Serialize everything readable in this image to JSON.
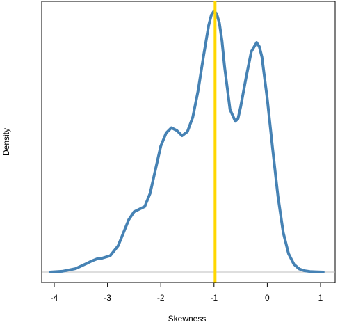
{
  "chart_data": {
    "type": "line",
    "title": "",
    "xlabel": "Skewness",
    "ylabel": "Density",
    "xlim": [
      -4.2,
      1.25
    ],
    "ylim": [
      0,
      1.0
    ],
    "x_ticks": [
      -4,
      -3,
      -2,
      -1,
      0,
      1
    ],
    "x_tick_labels": [
      "-4",
      "-3",
      "-2",
      "-1",
      "0",
      "1"
    ],
    "y_ticks_shown": false,
    "baseline": 0,
    "vline_x": -0.98,
    "series": [
      {
        "x": [
          -4.08,
          -3.85,
          -3.6,
          -3.4,
          -3.3,
          -3.2,
          -3.1,
          -2.95,
          -2.8,
          -2.7,
          -2.6,
          -2.5,
          -2.4,
          -2.3,
          -2.2,
          -2.1,
          -2.0,
          -1.9,
          -1.8,
          -1.7,
          -1.6,
          -1.5,
          -1.4,
          -1.3,
          -1.2,
          -1.1,
          -1.05,
          -1.0,
          -0.95,
          -0.9,
          -0.85,
          -0.8,
          -0.7,
          -0.6,
          -0.55,
          -0.5,
          -0.4,
          -0.3,
          -0.2,
          -0.15,
          -0.1,
          0.0,
          0.1,
          0.2,
          0.3,
          0.4,
          0.5,
          0.6,
          0.7,
          0.8,
          0.9,
          1.05
        ],
        "y": [
          0.0,
          0.003,
          0.013,
          0.032,
          0.042,
          0.05,
          0.053,
          0.062,
          0.1,
          0.15,
          0.2,
          0.23,
          0.24,
          0.25,
          0.3,
          0.39,
          0.48,
          0.53,
          0.55,
          0.54,
          0.52,
          0.535,
          0.59,
          0.69,
          0.82,
          0.94,
          0.98,
          0.995,
          0.985,
          0.95,
          0.88,
          0.78,
          0.62,
          0.575,
          0.585,
          0.63,
          0.74,
          0.84,
          0.875,
          0.86,
          0.82,
          0.66,
          0.47,
          0.29,
          0.15,
          0.07,
          0.03,
          0.012,
          0.005,
          0.002,
          0.001,
          0.0
        ],
        "color": "#4682B4"
      }
    ],
    "vline_color": "#FFD700",
    "baseline_color": "#BEBEBE"
  }
}
